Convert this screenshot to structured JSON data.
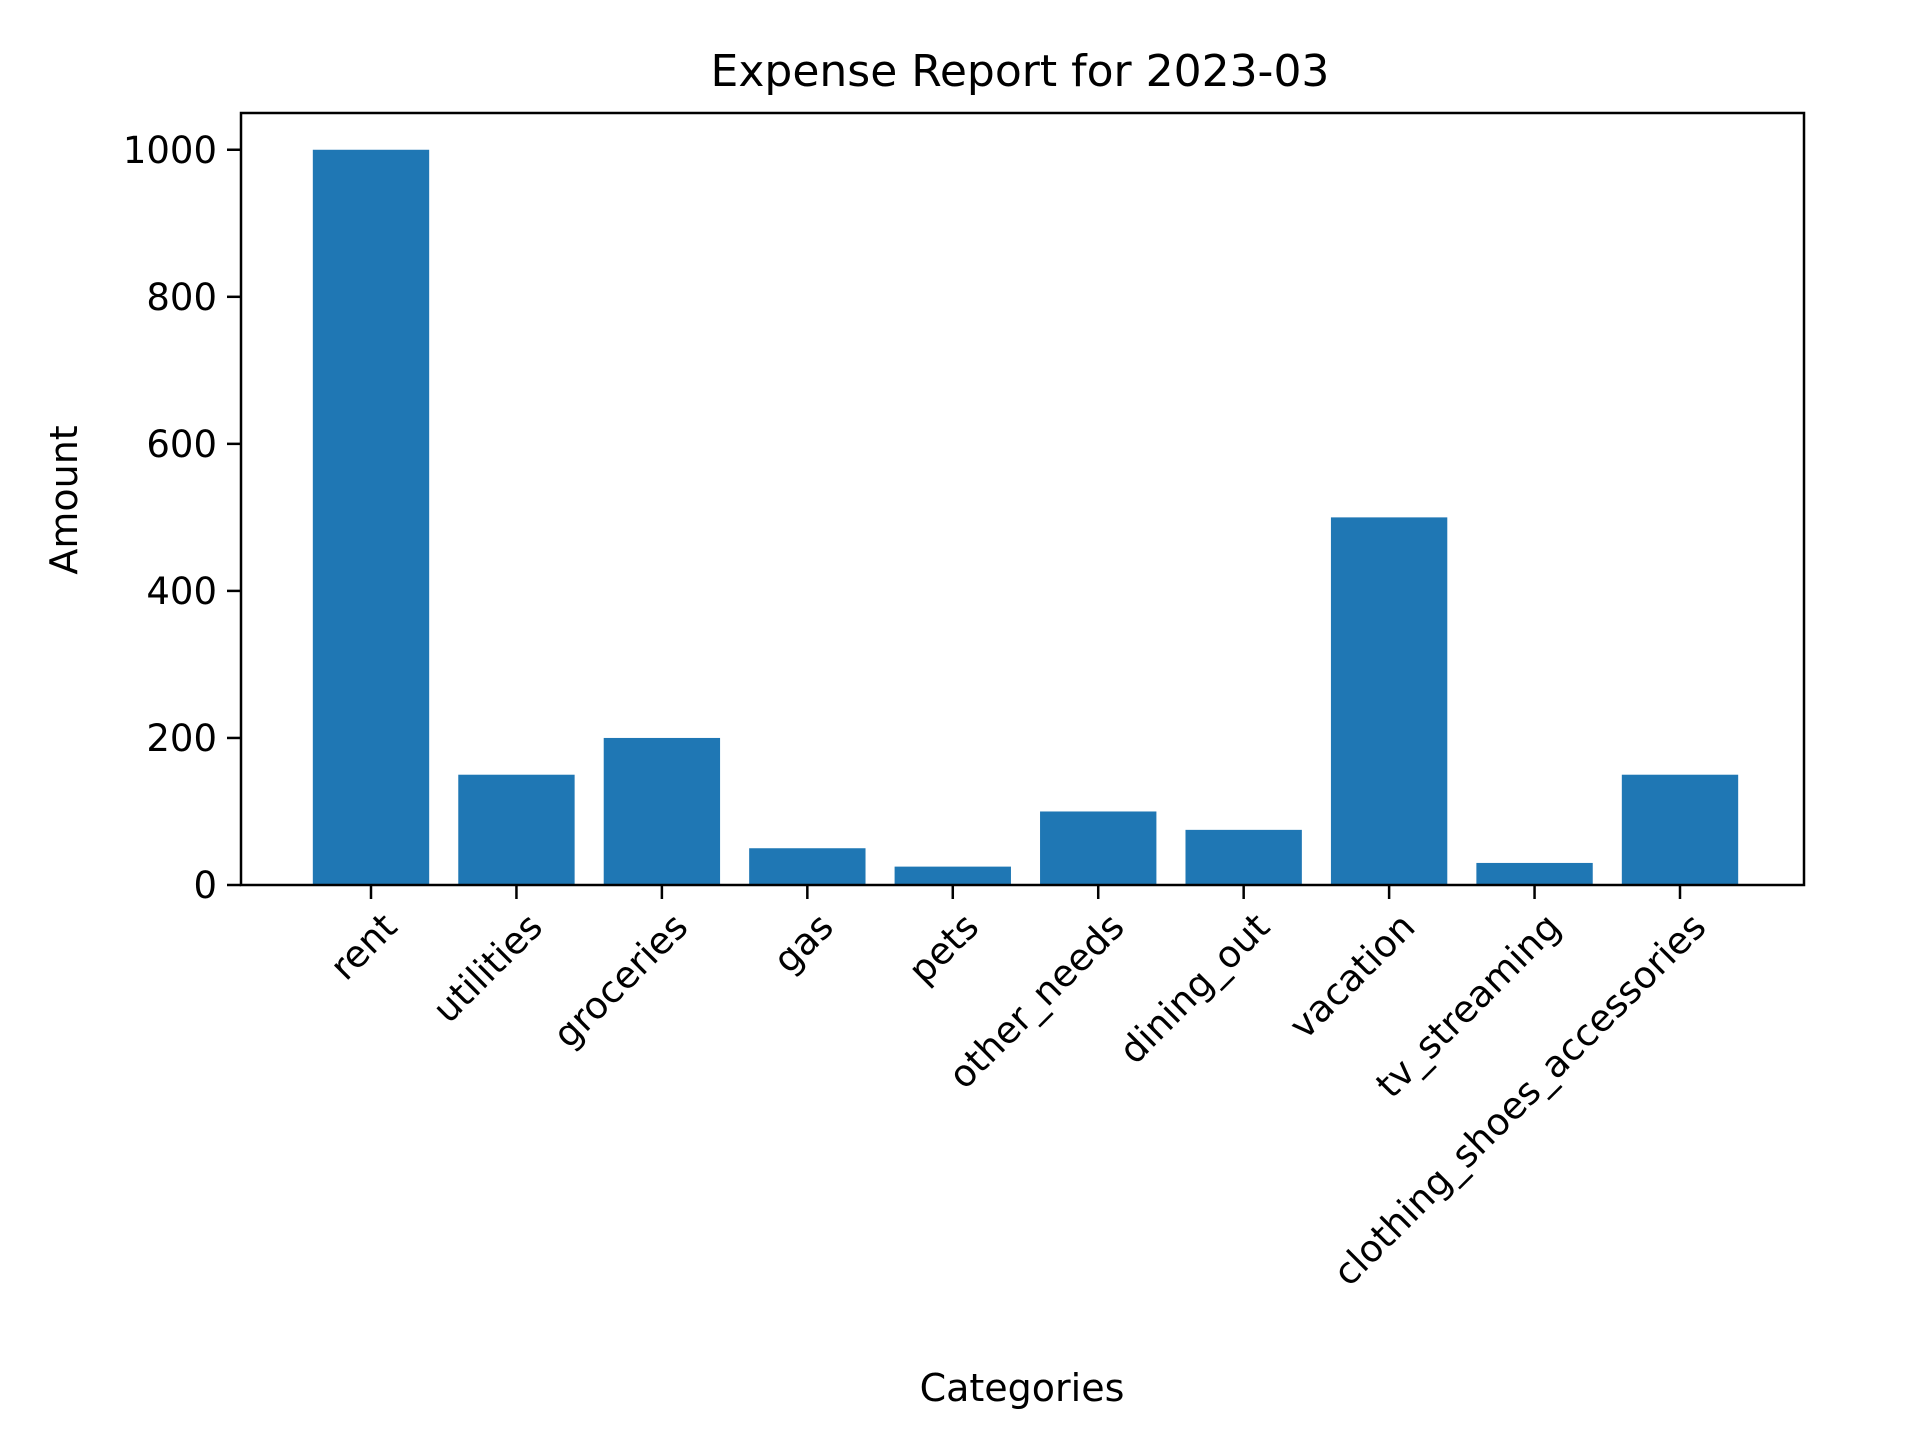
{
  "chart_data": {
    "type": "bar",
    "title": "Expense Report for 2023-03",
    "xlabel": "Categories",
    "ylabel": "Amount",
    "categories": [
      "rent",
      "utilities",
      "groceries",
      "gas",
      "pets",
      "other_needs",
      "dining_out",
      "vacation",
      "tv_streaming",
      "clothing_shoes_accessories"
    ],
    "values": [
      1000,
      150,
      200,
      50,
      25,
      100,
      75,
      500,
      30,
      150
    ],
    "ylim": [
      0,
      1050
    ],
    "yticks": [
      0,
      200,
      400,
      600,
      800,
      1000
    ],
    "grid": false,
    "legend": "none",
    "bar_color": "#1f77b4"
  }
}
